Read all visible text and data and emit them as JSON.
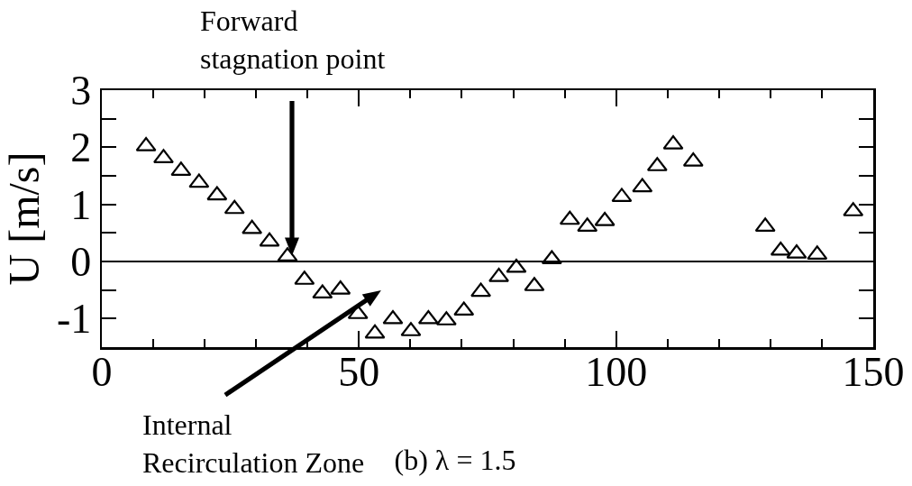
{
  "chart_data": {
    "type": "scatter",
    "title": "(b) λ = 1.5",
    "ylabel": "U [m/s]",
    "x": [
      8.6,
      12,
      15.4,
      18.9,
      22.4,
      25.8,
      29.2,
      32.6,
      36.1,
      39.4,
      42.9,
      46.4,
      49.8,
      53.1,
      56.6,
      60.1,
      63.5,
      67,
      70.4,
      73.7,
      77.2,
      80.6,
      84.1,
      87.5,
      91,
      94.4,
      97.8,
      101.1,
      105.1,
      108,
      111.1,
      115,
      129,
      132,
      135.1,
      139.1,
      146.1
    ],
    "values": [
      2.02,
      1.81,
      1.59,
      1.38,
      1.16,
      0.92,
      0.57,
      0.35,
      0.09,
      -0.32,
      -0.56,
      -0.49,
      -0.92,
      -1.26,
      -1.01,
      -1.22,
      -1.01,
      -1.03,
      -0.86,
      -0.53,
      -0.27,
      -0.11,
      -0.43,
      0.04,
      0.73,
      0.61,
      0.71,
      1.13,
      1.3,
      1.67,
      2.05,
      1.75,
      0.61,
      0.19,
      0.14,
      0.12,
      0.88
    ],
    "color": "#000000",
    "marker": "triangle",
    "xlim": [
      0,
      150
    ],
    "xticks": [
      0,
      {
        "value": 10,
        "label": null
      },
      {
        "value": 20,
        "label": null
      },
      {
        "value": 30,
        "label": null
      },
      {
        "value": 40,
        "label": null
      },
      50,
      {
        "value": 60,
        "label": null
      },
      {
        "value": 70,
        "label": null
      },
      {
        "value": 80,
        "label": null
      },
      {
        "value": 90,
        "label": null
      },
      100,
      {
        "value": 110,
        "label": null
      },
      {
        "value": 120,
        "label": null
      },
      {
        "value": 130,
        "label": null
      },
      {
        "value": 140,
        "label": null
      },
      150
    ],
    "ylim": [
      -1.5,
      3
    ],
    "yticks": [
      -1,
      {
        "value": -0.5,
        "label": null
      },
      0,
      {
        "value": 0.5,
        "label": null
      },
      1,
      {
        "value": 1.5,
        "label": null
      },
      2,
      {
        "value": 2.5,
        "label": null
      },
      3
    ],
    "ref_lines": [
      {
        "axis": "y",
        "value": 0,
        "color": "#000000"
      }
    ],
    "annotations": [
      "Forward\nstagnation point",
      "Internal\nRecirculation Zone"
    ]
  }
}
